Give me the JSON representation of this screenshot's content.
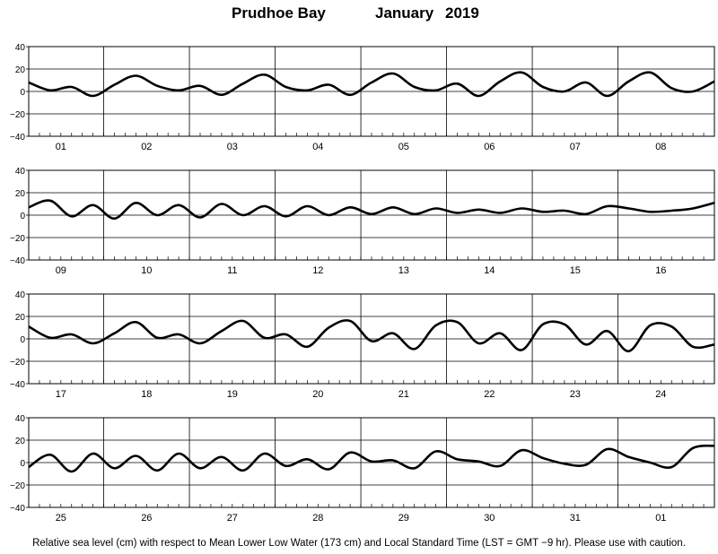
{
  "header": {
    "station": "Prudhoe Bay",
    "month": "January",
    "year": "2019"
  },
  "footnote": "Relative sea level (cm) with respect to Mean Lower Low Water (173 cm) and Local Standard Time (LST = GMT −9 hr). Please use with caution.",
  "chart_data": {
    "type": "line",
    "title": "Prudhoe Bay January 2019",
    "ylabel": "",
    "xlabel": "",
    "ylim": [
      -40,
      40
    ],
    "yticks": [
      "40",
      "20",
      "0",
      "−20",
      "−40"
    ],
    "grid": true,
    "line_color": "#000000",
    "panels": [
      {
        "days": [
          "01",
          "02",
          "03",
          "04",
          "05",
          "06",
          "07",
          "08"
        ],
        "x_hours": [
          0,
          6,
          12,
          18,
          24,
          30,
          36,
          42,
          48,
          54,
          60,
          66,
          72,
          78,
          84,
          90,
          96,
          102,
          108,
          114,
          120,
          126,
          132,
          138,
          144,
          150,
          156,
          162,
          168,
          174,
          180,
          186,
          192
        ],
        "y": [
          8,
          1,
          4,
          -4,
          6,
          14,
          5,
          1,
          5,
          -3,
          7,
          15,
          4,
          1,
          6,
          -3,
          8,
          16,
          4,
          1,
          7,
          -4,
          9,
          17,
          4,
          0,
          8,
          -4,
          9,
          17,
          3,
          0,
          9
        ]
      },
      {
        "days": [
          "09",
          "10",
          "11",
          "12",
          "13",
          "14",
          "15",
          "16"
        ],
        "x_hours": [
          0,
          6,
          12,
          18,
          24,
          30,
          36,
          42,
          48,
          54,
          60,
          66,
          72,
          78,
          84,
          90,
          96,
          102,
          108,
          114,
          120,
          126,
          132,
          138,
          144,
          150,
          156,
          162,
          168,
          174,
          180,
          186,
          192
        ],
        "y": [
          7,
          13,
          -1,
          9,
          -3,
          11,
          0,
          9,
          -2,
          10,
          0,
          8,
          -1,
          8,
          0,
          7,
          1,
          7,
          1,
          6,
          2,
          5,
          2,
          6,
          3,
          4,
          1,
          8,
          6,
          3,
          4,
          6,
          11
        ]
      },
      {
        "days": [
          "17",
          "18",
          "19",
          "20",
          "21",
          "22",
          "23",
          "24"
        ],
        "x_hours": [
          0,
          6,
          12,
          18,
          24,
          30,
          36,
          42,
          48,
          54,
          60,
          66,
          72,
          78,
          84,
          90,
          96,
          102,
          108,
          114,
          120,
          126,
          132,
          138,
          144,
          150,
          156,
          162,
          168,
          174,
          180,
          186,
          192
        ],
        "y": [
          11,
          1,
          4,
          -4,
          5,
          15,
          1,
          4,
          -4,
          7,
          16,
          1,
          4,
          -7,
          10,
          16,
          -2,
          5,
          -9,
          12,
          15,
          -4,
          5,
          -10,
          13,
          13,
          -5,
          7,
          -11,
          12,
          11,
          -7,
          -5
        ]
      },
      {
        "days": [
          "25",
          "26",
          "27",
          "28",
          "29",
          "30",
          "31",
          "01"
        ],
        "x_hours": [
          0,
          6,
          12,
          18,
          24,
          30,
          36,
          42,
          48,
          54,
          60,
          66,
          72,
          78,
          84,
          90,
          96,
          102,
          108,
          114,
          120,
          126,
          132,
          138,
          144,
          150,
          156,
          162,
          168,
          174,
          180,
          186,
          192
        ],
        "y": [
          -4,
          7,
          -8,
          8,
          -5,
          6,
          -7,
          8,
          -5,
          5,
          -7,
          8,
          -3,
          3,
          -6,
          9,
          1,
          2,
          -5,
          10,
          3,
          1,
          -3,
          11,
          4,
          -1,
          -2,
          12,
          5,
          0,
          -4,
          13,
          15
        ]
      }
    ]
  }
}
